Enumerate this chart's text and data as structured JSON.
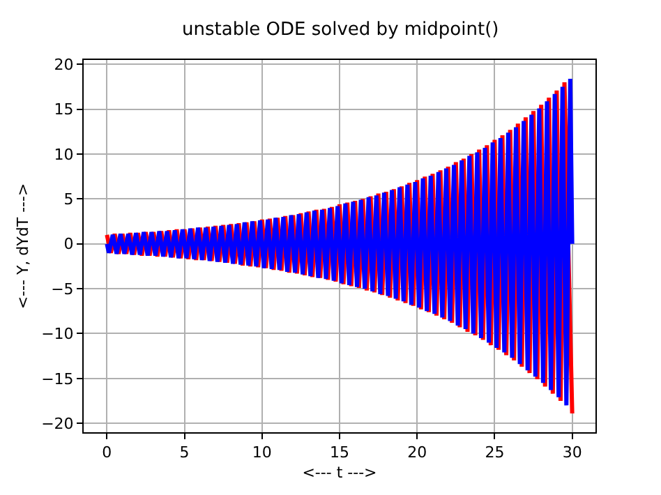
{
  "chart_data": {
    "type": "line",
    "title": "unstable ODE solved by midpoint()",
    "xlabel": "<--- t --->",
    "ylabel": "<--- Y, dYdT --->",
    "xlim": [
      -1.5,
      31.5
    ],
    "xticks": [
      0,
      5,
      10,
      15,
      20,
      25,
      30
    ],
    "ylim": [
      -21,
      20.5
    ],
    "yticks": [
      -20,
      -15,
      -10,
      -5,
      0,
      5,
      10,
      15,
      20
    ],
    "grid": true,
    "marker": "none",
    "line_style": "solid",
    "series": [
      {
        "color": "#ff0000",
        "x": [
          0,
          0.25,
          0.5,
          0.75,
          1,
          1.25,
          1.5,
          1.75,
          2,
          2.25,
          2.5,
          2.75,
          3,
          3.25,
          3.5,
          3.75,
          4,
          4.25,
          4.5,
          4.75,
          5,
          5.25,
          5.5,
          5.75,
          6,
          6.25,
          6.5,
          6.75,
          7,
          7.25,
          7.5,
          7.75,
          8,
          8.25,
          8.5,
          8.75,
          9,
          9.25,
          9.5,
          9.75,
          10,
          10.25,
          10.5,
          10.75,
          11,
          11.25,
          11.5,
          11.75,
          12,
          12.25,
          12.5,
          12.75,
          13,
          13.25,
          13.5,
          13.75,
          14,
          14.25,
          14.5,
          14.75,
          15,
          15.25,
          15.5,
          15.75,
          16,
          16.25,
          16.5,
          16.75,
          17,
          17.25,
          17.5,
          17.75,
          18,
          18.25,
          18.5,
          18.75,
          19,
          19.25,
          19.5,
          19.75,
          20,
          20.25,
          20.5,
          20.75,
          21,
          21.25,
          21.5,
          21.75,
          22,
          22.25,
          22.5,
          22.75,
          23,
          23.25,
          23.5,
          23.75,
          24,
          24.25,
          24.5,
          24.75,
          25,
          25.25,
          25.5,
          25.75,
          26,
          26.25,
          26.5,
          26.75,
          27,
          27.25,
          27.5,
          27.75,
          28,
          28.25,
          28.5,
          28.75,
          29,
          29.25,
          29.5,
          30
        ],
        "values": [
          1.0,
          -1.0,
          1.1,
          -1.1,
          1.1,
          -1.1,
          1.2,
          -1.2,
          1.2,
          -1.3,
          1.3,
          -1.3,
          1.3,
          -1.4,
          1.4,
          -1.4,
          1.5,
          -1.5,
          1.6,
          -1.6,
          1.6,
          -1.7,
          1.7,
          -1.8,
          1.8,
          -1.8,
          1.9,
          -1.9,
          2.0,
          -2.0,
          2.1,
          -2.1,
          2.2,
          -2.2,
          2.3,
          -2.4,
          2.4,
          -2.5,
          2.5,
          -2.6,
          2.7,
          -2.7,
          2.8,
          -2.9,
          2.9,
          -3.0,
          3.1,
          -3.2,
          3.2,
          -3.3,
          3.4,
          -3.5,
          3.6,
          -3.7,
          3.8,
          -3.8,
          3.9,
          -4.0,
          4.1,
          -4.2,
          4.4,
          -4.5,
          4.6,
          -4.7,
          4.8,
          -4.9,
          5.0,
          -5.2,
          5.3,
          -5.4,
          5.6,
          -5.7,
          5.8,
          -6.0,
          6.1,
          -6.3,
          6.4,
          -6.6,
          6.8,
          -6.9,
          7.1,
          -7.3,
          7.5,
          -7.6,
          7.8,
          -8.0,
          8.2,
          -8.4,
          8.6,
          -8.8,
          9.1,
          -9.3,
          9.5,
          -9.8,
          10.0,
          -10.2,
          10.5,
          -10.7,
          11.0,
          -11.3,
          11.6,
          -11.8,
          12.1,
          -12.4,
          12.7,
          -13.0,
          13.4,
          -13.7,
          14.1,
          -14.4,
          14.8,
          -15.1,
          15.5,
          -15.9,
          16.3,
          -16.7,
          17.1,
          -17.5,
          18.0,
          -18.9
        ]
      },
      {
        "color": "#0000ff",
        "x": [
          0,
          0.125,
          0.375,
          0.625,
          0.875,
          1.125,
          1.375,
          1.625,
          1.875,
          2.125,
          2.375,
          2.625,
          2.875,
          3.125,
          3.375,
          3.625,
          3.875,
          4.125,
          4.375,
          4.625,
          4.875,
          5.125,
          5.375,
          5.625,
          5.875,
          6.125,
          6.375,
          6.625,
          6.875,
          7.125,
          7.375,
          7.625,
          7.875,
          8.125,
          8.375,
          8.625,
          8.875,
          9.125,
          9.375,
          9.625,
          9.875,
          10.125,
          10.375,
          10.625,
          10.875,
          11.125,
          11.375,
          11.625,
          11.875,
          12.125,
          12.375,
          12.625,
          12.875,
          13.125,
          13.375,
          13.625,
          13.875,
          14.125,
          14.375,
          14.625,
          14.875,
          15.125,
          15.375,
          15.625,
          15.875,
          16.125,
          16.375,
          16.625,
          16.875,
          17.125,
          17.375,
          17.625,
          17.875,
          18.125,
          18.375,
          18.625,
          18.875,
          19.125,
          19.375,
          19.625,
          19.875,
          20.125,
          20.375,
          20.625,
          20.875,
          21.125,
          21.375,
          21.625,
          21.875,
          22.125,
          22.375,
          22.625,
          22.875,
          23.125,
          23.375,
          23.625,
          23.875,
          24.125,
          24.375,
          24.625,
          24.875,
          25.125,
          25.375,
          25.625,
          25.875,
          26.125,
          26.375,
          26.625,
          26.875,
          27.125,
          27.375,
          27.625,
          27.875,
          28.125,
          28.375,
          28.625,
          28.875,
          29.125,
          29.375,
          29.625,
          29.875,
          30
        ],
        "values": [
          0,
          -1.0,
          1.0,
          -1.1,
          1.1,
          -1.1,
          1.1,
          -1.2,
          1.2,
          -1.2,
          1.3,
          -1.3,
          1.3,
          -1.3,
          1.4,
          -1.4,
          1.4,
          -1.5,
          1.5,
          -1.6,
          1.6,
          -1.6,
          1.7,
          -1.7,
          1.8,
          -1.8,
          1.8,
          -1.9,
          1.9,
          -2.0,
          2.0,
          -2.1,
          2.1,
          -2.2,
          2.2,
          -2.3,
          2.4,
          -2.4,
          2.5,
          -2.5,
          2.6,
          -2.7,
          2.7,
          -2.8,
          2.9,
          -2.9,
          3.0,
          -3.1,
          3.2,
          -3.2,
          3.3,
          -3.4,
          3.5,
          -3.6,
          3.7,
          -3.8,
          3.8,
          -3.9,
          4.0,
          -4.1,
          4.2,
          -4.4,
          4.5,
          -4.6,
          4.7,
          -4.8,
          4.9,
          -5.0,
          5.2,
          -5.3,
          5.4,
          -5.6,
          5.7,
          -5.8,
          6.0,
          -6.1,
          6.3,
          -6.4,
          6.6,
          -6.8,
          6.9,
          -7.1,
          7.3,
          -7.5,
          7.6,
          -7.8,
          8.0,
          -8.2,
          8.4,
          -8.6,
          8.8,
          -9.1,
          9.3,
          -9.5,
          9.8,
          -10.0,
          10.2,
          -10.5,
          10.7,
          -11.0,
          11.3,
          -11.6,
          11.8,
          -12.1,
          12.4,
          -12.7,
          13.0,
          -13.4,
          13.7,
          -14.1,
          14.4,
          -14.8,
          15.1,
          -15.5,
          15.9,
          -16.3,
          16.7,
          -17.1,
          17.5,
          -18.0,
          18.4,
          0
        ]
      }
    ]
  }
}
